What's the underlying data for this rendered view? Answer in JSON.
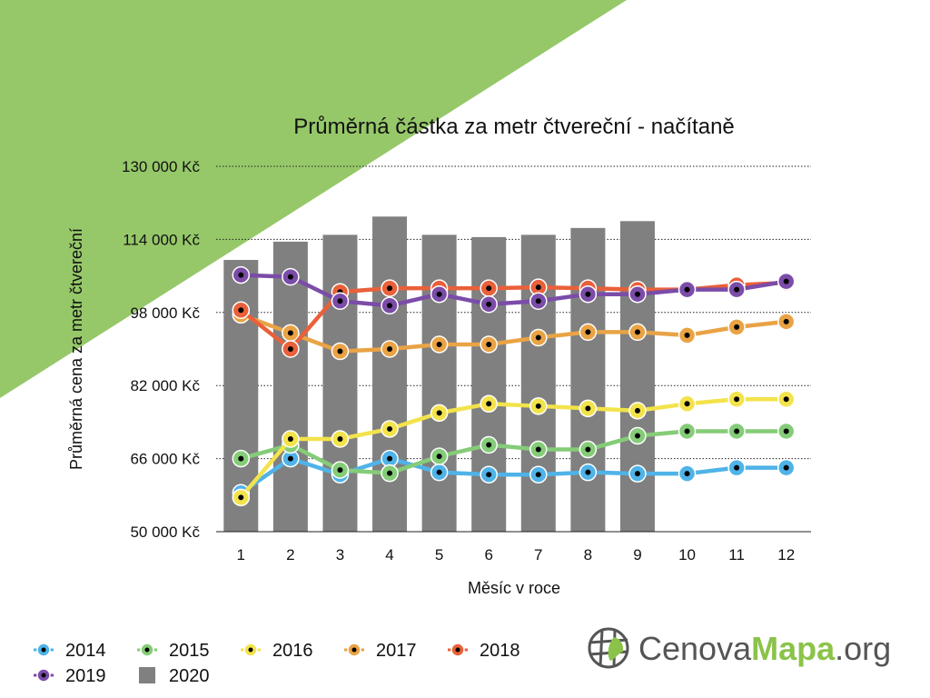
{
  "chart_data": {
    "type": "line",
    "title": "Průměrná částka za metr čtvereční - načítaně",
    "xlabel": "Měsíc v roce",
    "ylabel": "Průměrná cena za metr čtvereční",
    "categories": [
      "1",
      "2",
      "3",
      "4",
      "5",
      "6",
      "7",
      "8",
      "9",
      "10",
      "11",
      "12"
    ],
    "ylim": [
      50000,
      130000
    ],
    "yticks": [
      {
        "value": 50000,
        "label": "50 000 Kč"
      },
      {
        "value": 66000,
        "label": "66 000 Kč"
      },
      {
        "value": 82000,
        "label": "82 000 Kč"
      },
      {
        "value": 98000,
        "label": "98 000 Kč"
      },
      {
        "value": 114000,
        "label": "114 000 Kč"
      },
      {
        "value": 130000,
        "label": "130 000 Kč"
      }
    ],
    "grid": "horizontal-dotted",
    "legend_position": "bottom-left",
    "bar_series": {
      "name": "2020",
      "color": "#808080",
      "values": [
        109500,
        113500,
        115000,
        119000,
        115000,
        114500,
        115000,
        116500,
        118000
      ]
    },
    "series": [
      {
        "name": "2014",
        "color": "#4fb3e8",
        "values": [
          58500,
          66000,
          62500,
          66000,
          63000,
          62500,
          62500,
          63000,
          62700,
          62700,
          64000,
          64000
        ]
      },
      {
        "name": "2015",
        "color": "#85cc78",
        "values": [
          66000,
          69000,
          63500,
          62800,
          66500,
          69000,
          68000,
          68000,
          71000,
          72000,
          72000,
          72000
        ]
      },
      {
        "name": "2016",
        "color": "#f3e34b",
        "values": [
          57500,
          70300,
          70300,
          72500,
          76000,
          78000,
          77500,
          77000,
          76500,
          78000,
          79000,
          79000
        ]
      },
      {
        "name": "2017",
        "color": "#e9a345",
        "values": [
          97500,
          93500,
          89500,
          90000,
          91000,
          91000,
          92500,
          93700,
          93700,
          93000,
          94800,
          96000
        ]
      },
      {
        "name": "2018",
        "color": "#e9603a",
        "values": [
          98500,
          90000,
          102500,
          103300,
          103300,
          103300,
          103500,
          103300,
          103000,
          103000,
          104000,
          104500
        ]
      },
      {
        "name": "2019",
        "color": "#7b4ca8",
        "values": [
          106200,
          105800,
          100500,
          99500,
          102000,
          99800,
          100500,
          102000,
          102000,
          103000,
          103000,
          104800
        ]
      }
    ]
  },
  "logo": {
    "text_left": "Cenova",
    "text_mid": "Mapa",
    "text_right": ".org",
    "color_dark": "#555555",
    "color_green": "#8bc34a"
  },
  "decor": {
    "corner_color": "#96c869"
  }
}
